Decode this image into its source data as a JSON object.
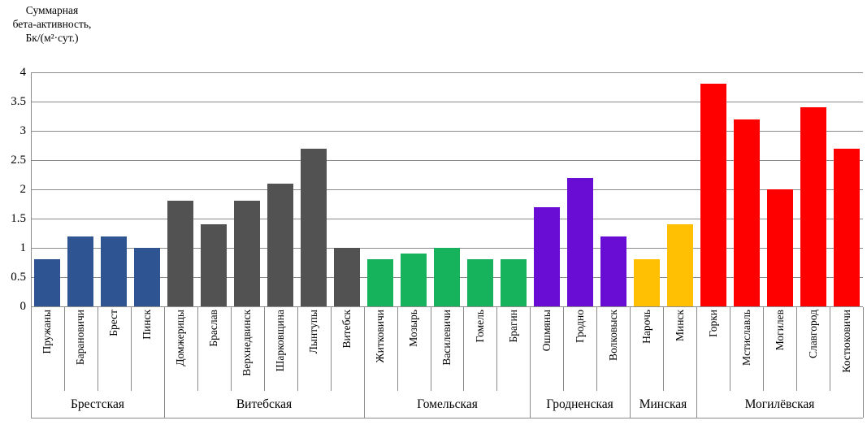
{
  "y_axis_title": {
    "line1": "Суммарная",
    "line2": "бета-активность,",
    "line3": "Бк/(м²·сут.)"
  },
  "chart_data": {
    "type": "bar",
    "title": "",
    "xlabel": "",
    "ylabel": "Суммарная бета-активность, Бк/(м²·сут.)",
    "ylim": [
      0,
      4
    ],
    "ytick_step": 0.5,
    "yticks": [
      "0",
      "0.5",
      "1",
      "1.5",
      "2",
      "2.5",
      "3",
      "3.5",
      "4"
    ],
    "grid": true,
    "legend_position": "none",
    "axis_color": "#8C8C8C",
    "grid_color": "#8C8C8C",
    "groups": [
      {
        "region": "Брестская",
        "color": "#2F5492",
        "categories": [
          "Пружаны",
          "Барановичи",
          "Брест",
          "Пинск"
        ],
        "values": [
          0.8,
          1.2,
          1.2,
          1.0
        ]
      },
      {
        "region": "Витебская",
        "color": "#525252",
        "categories": [
          "Домжерицы",
          "Браслав",
          "Верхнедвинск",
          "Шарковщина",
          "Лынтупы",
          "Витебск"
        ],
        "values": [
          1.8,
          1.4,
          1.8,
          2.1,
          2.7,
          1.0
        ]
      },
      {
        "region": "Гомельская",
        "color": "#17B25C",
        "categories": [
          "Житковичи",
          "Мозырь",
          "Василевичи",
          "Гомель",
          "Брагин"
        ],
        "values": [
          0.8,
          0.9,
          1.0,
          0.8,
          0.8
        ]
      },
      {
        "region": "Гродненская",
        "color": "#6A0DD4",
        "categories": [
          "Ошмяны",
          "Гродно",
          "Волковыск"
        ],
        "values": [
          1.7,
          2.2,
          1.2
        ]
      },
      {
        "region": "Минская",
        "color": "#FFC003",
        "categories": [
          "Нарочь",
          "Минск"
        ],
        "values": [
          0.8,
          1.4
        ]
      },
      {
        "region": "Могилёвская",
        "color": "#FE0000",
        "categories": [
          "Горки",
          "Мстиславль",
          "Могилев",
          "Славгород",
          "Костюковичи"
        ],
        "values": [
          3.8,
          3.2,
          2.0,
          3.4,
          2.7
        ]
      }
    ]
  }
}
